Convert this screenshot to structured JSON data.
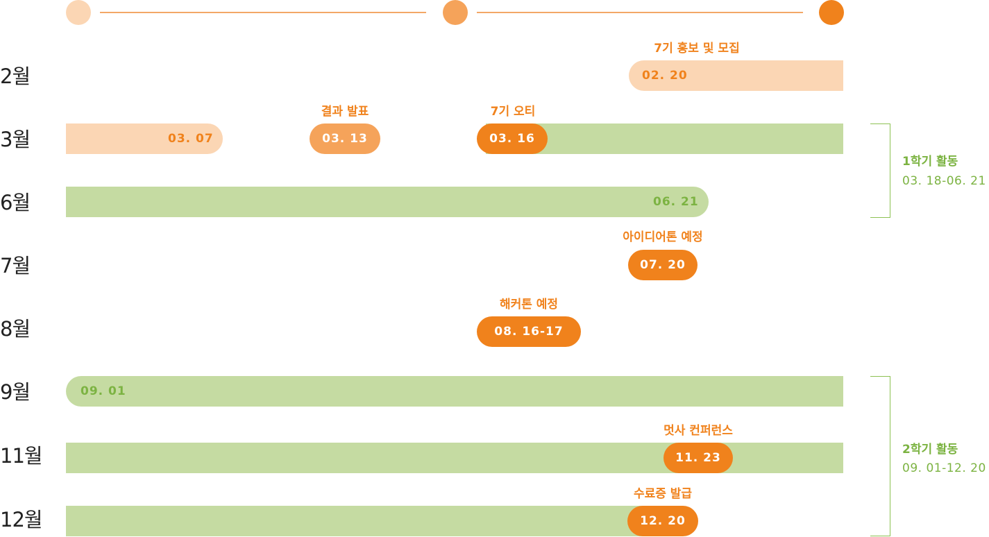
{
  "colors": {
    "light_orange": "#fbd6b4",
    "mid_orange": "#f5a35a",
    "orange": "#f0821c",
    "green_bar": "#c5dba2",
    "green_text": "#7cb342",
    "line_orange": "#f3a766"
  },
  "months": [
    "2월",
    "3월",
    "6월",
    "7월",
    "8월",
    "9월",
    "11월",
    "12월"
  ],
  "events": {
    "recruit": {
      "label": "7기 홍보 및 모집",
      "date": "02. 20"
    },
    "close": {
      "date": "03. 07"
    },
    "result": {
      "label": "결과 발표",
      "date": "03. 13"
    },
    "ot": {
      "label": "7기 오티",
      "date": "03. 16"
    },
    "sem1_end": {
      "date": "06. 21"
    },
    "ideathon": {
      "label": "아이디어톤 예정",
      "date": "07. 20"
    },
    "hackathon": {
      "label": "해커톤 예정",
      "date": "08. 16-17"
    },
    "sem2_start": {
      "date": "09. 01"
    },
    "conference": {
      "label": "멋사 컨퍼런스",
      "date": "11. 23"
    },
    "certificate": {
      "label": "수료증 발급",
      "date": "12. 20"
    }
  },
  "semesters": [
    {
      "title": "1학기 활동",
      "range": "03. 18-06. 21"
    },
    {
      "title": "2학기 활동",
      "range": "09. 01-12. 20"
    }
  ]
}
